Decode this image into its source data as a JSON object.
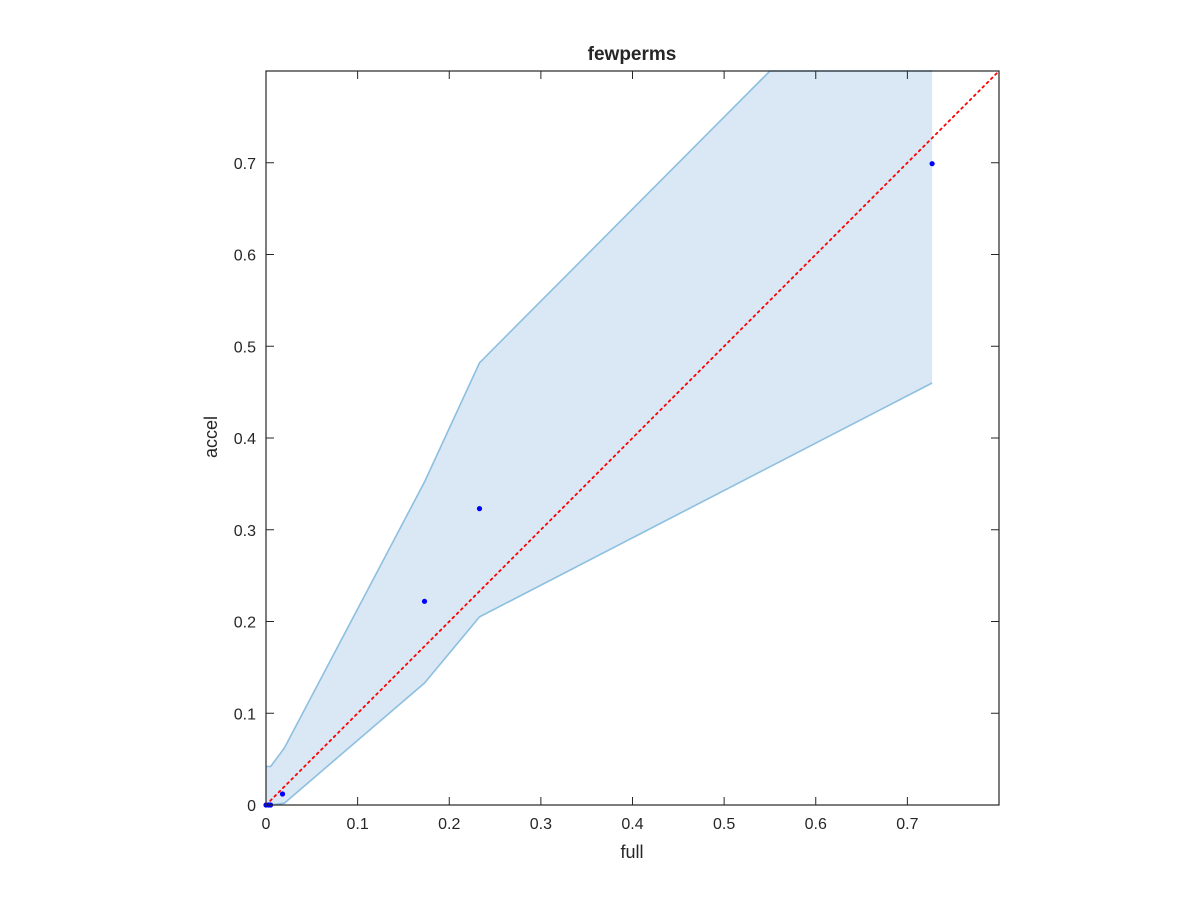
{
  "chart_data": {
    "type": "scatter",
    "title": "fewperms",
    "xlabel": "full",
    "ylabel": "accel",
    "xlim": [
      0,
      0.8
    ],
    "ylim": [
      0,
      0.8
    ],
    "x_ticks": [
      0,
      0.1,
      0.2,
      0.3,
      0.4,
      0.5,
      0.6,
      0.7
    ],
    "y_ticks": [
      0,
      0.1,
      0.2,
      0.3,
      0.4,
      0.5,
      0.6,
      0.7
    ],
    "x_tick_labels": [
      "0",
      "0.1",
      "0.2",
      "0.3",
      "0.4",
      "0.5",
      "0.6",
      "0.7"
    ],
    "y_tick_labels": [
      "0",
      "0.1",
      "0.2",
      "0.3",
      "0.4",
      "0.5",
      "0.6",
      "0.7"
    ],
    "grid": false,
    "band": {
      "upper": [
        [
          0,
          0.042
        ],
        [
          0.005,
          0.042
        ],
        [
          0.02,
          0.062
        ],
        [
          0.173,
          0.352
        ],
        [
          0.233,
          0.482
        ],
        [
          0.55,
          0.8
        ],
        [
          0.727,
          0.8
        ]
      ],
      "lower": [
        [
          0.727,
          0.46
        ],
        [
          0.233,
          0.205
        ],
        [
          0.173,
          0.133
        ],
        [
          0.02,
          0.002
        ],
        [
          0.005,
          0.0
        ],
        [
          0,
          0.0
        ]
      ],
      "fill_color": "#d9e8f4",
      "edge_color": "#8dbfe0"
    },
    "points": {
      "x": [
        0,
        0.003,
        0.005,
        0.018,
        0.173,
        0.233,
        0.727
      ],
      "y": [
        0,
        0.0,
        0.0,
        0.012,
        0.222,
        0.323,
        0.699
      ],
      "color": "#0000ff"
    },
    "reference_line": {
      "x": [
        0,
        0.8
      ],
      "y": [
        0,
        0.8
      ],
      "color": "#ff0000",
      "style": "dotted"
    }
  }
}
